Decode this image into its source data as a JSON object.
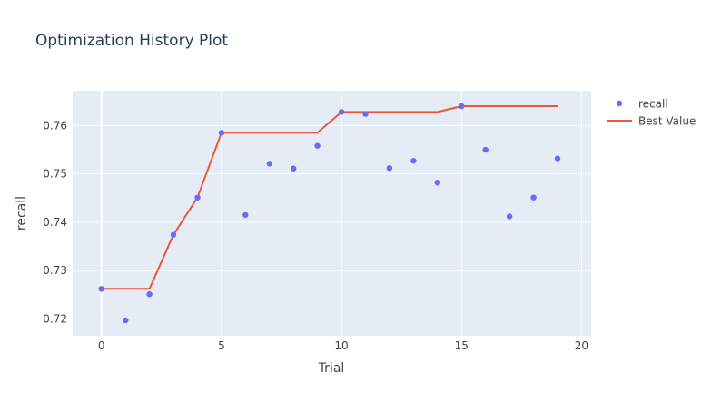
{
  "chart_data": {
    "type": "scatter",
    "title": "Optimization History Plot",
    "xlabel": "Trial",
    "ylabel": "recall",
    "xlim": [
      -1.2,
      20.4
    ],
    "ylim": [
      0.7165,
      0.7672
    ],
    "x_ticks": [
      0,
      5,
      10,
      15,
      20
    ],
    "y_ticks": [
      0.72,
      0.73,
      0.74,
      0.75,
      0.76
    ],
    "grid": true,
    "legend_position": "top-right",
    "colors": {
      "plot_bg": "#E5ECF6",
      "grid": "#ffffff",
      "text": "#444444",
      "title": "#2a3f5f",
      "points": "#636EFA",
      "best_line": "#EF553B"
    },
    "series": [
      {
        "name": "recall",
        "mode": "markers",
        "x": [
          0,
          1,
          2,
          3,
          4,
          5,
          6,
          7,
          8,
          9,
          10,
          11,
          12,
          13,
          14,
          15,
          16,
          17,
          18,
          19
        ],
        "y": [
          0.7262,
          0.7197,
          0.7251,
          0.7374,
          0.7451,
          0.7585,
          0.7415,
          0.7521,
          0.7511,
          0.7558,
          0.7628,
          0.7624,
          0.7512,
          0.7527,
          0.7482,
          0.764,
          0.755,
          0.7412,
          0.7451,
          0.7532
        ]
      },
      {
        "name": "Best Value",
        "mode": "lines",
        "x": [
          0,
          1,
          2,
          3,
          4,
          5,
          6,
          7,
          8,
          9,
          10,
          11,
          12,
          13,
          14,
          15,
          16,
          17,
          18,
          19
        ],
        "y": [
          0.7262,
          0.7262,
          0.7262,
          0.7374,
          0.7451,
          0.7585,
          0.7585,
          0.7585,
          0.7585,
          0.7585,
          0.7628,
          0.7628,
          0.7628,
          0.7628,
          0.7628,
          0.764,
          0.764,
          0.764,
          0.764,
          0.764
        ]
      }
    ]
  }
}
